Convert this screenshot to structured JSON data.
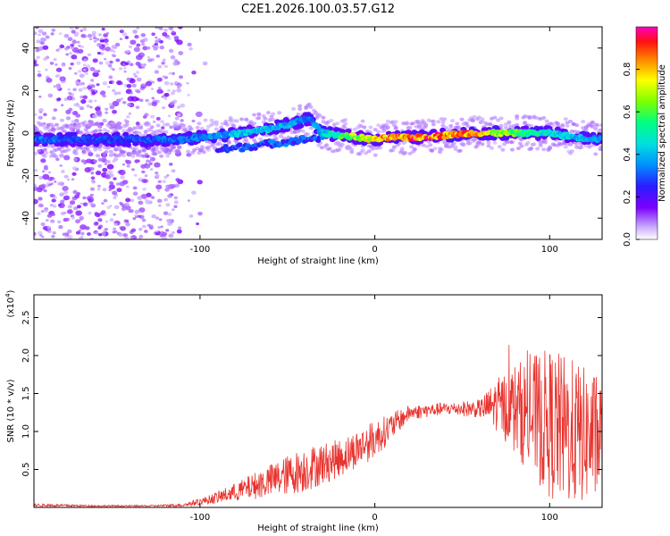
{
  "title": "C2E1.2026.100.03.57.G12",
  "chart_data": [
    {
      "type": "heatmap",
      "name": "spectrogram",
      "ylabel": "Frequency (Hz)",
      "xlabel": "Height of straight line (km)",
      "xlim": [
        -195,
        130
      ],
      "ylim": [
        -50,
        50
      ],
      "xticks": [
        -100,
        0,
        100
      ],
      "yticks": [
        -40,
        -20,
        0,
        20,
        40
      ],
      "colorbar": {
        "label": "Normalized spectral amplitude",
        "range": [
          0,
          1
        ],
        "ticks": [
          0.0,
          0.2,
          0.4,
          0.6,
          0.8
        ]
      },
      "ridge": [
        {
          "x": -190,
          "y": -3,
          "amp": 0.35
        },
        {
          "x": -170,
          "y": -3,
          "amp": 0.3
        },
        {
          "x": -150,
          "y": -3,
          "amp": 0.3
        },
        {
          "x": -130,
          "y": -3,
          "amp": 0.32
        },
        {
          "x": -110,
          "y": -3,
          "amp": 0.35
        },
        {
          "x": -90,
          "y": -1,
          "amp": 0.4
        },
        {
          "x": -75,
          "y": 0,
          "amp": 0.45
        },
        {
          "x": -60,
          "y": 2,
          "amp": 0.45
        },
        {
          "x": -45,
          "y": 5,
          "amp": 0.4
        },
        {
          "x": -38,
          "y": 7,
          "amp": 0.35
        },
        {
          "x": -30,
          "y": 0,
          "amp": 0.45
        },
        {
          "x": -20,
          "y": -1,
          "amp": 0.6
        },
        {
          "x": -10,
          "y": -2,
          "amp": 0.75
        },
        {
          "x": 0,
          "y": -3,
          "amp": 0.8
        },
        {
          "x": 10,
          "y": -2,
          "amp": 0.95
        },
        {
          "x": 25,
          "y": -2,
          "amp": 0.98
        },
        {
          "x": 40,
          "y": -1,
          "amp": 0.95
        },
        {
          "x": 55,
          "y": 0,
          "amp": 0.9
        },
        {
          "x": 70,
          "y": 0,
          "amp": 0.75
        },
        {
          "x": 85,
          "y": 0,
          "amp": 0.6
        },
        {
          "x": 100,
          "y": 0,
          "amp": 0.5
        },
        {
          "x": 115,
          "y": -2,
          "amp": 0.45
        },
        {
          "x": 130,
          "y": -3,
          "amp": 0.4
        }
      ]
    },
    {
      "type": "line",
      "name": "snr",
      "ylabel": "SNR (10 * v/v)",
      "xlabel": "Height of straight line (km)",
      "ylabel_scale": "(x10",
      "ylabel_scale_exp": "4",
      "ylabel_scale_close": ")",
      "xlim": [
        -195,
        130
      ],
      "ylim": [
        0,
        28000
      ],
      "xticks": [
        -100,
        0,
        100
      ],
      "yticks": [
        5000,
        10000,
        15000,
        20000,
        25000
      ],
      "ytick_labels": [
        "0.5",
        "1.0",
        "1.5",
        "2.0",
        "2.5"
      ],
      "color": "#e8342f",
      "envelope": {
        "x": [
          -195,
          -160,
          -130,
          -110,
          -95,
          -80,
          -60,
          -40,
          -20,
          0,
          20,
          40,
          60,
          70,
          80,
          90,
          100,
          110,
          120,
          130
        ],
        "mean": [
          300,
          200,
          200,
          300,
          1000,
          2000,
          3500,
          5000,
          6500,
          9000,
          12500,
          13000,
          13000,
          13500,
          13000,
          12000,
          11000,
          10000,
          9500,
          9000
        ],
        "spread": [
          200,
          100,
          100,
          200,
          600,
          1200,
          2200,
          3000,
          2500,
          2500,
          1000,
          800,
          1200,
          3500,
          6000,
          8000,
          10000,
          10000,
          9000,
          8000
        ]
      }
    }
  ]
}
